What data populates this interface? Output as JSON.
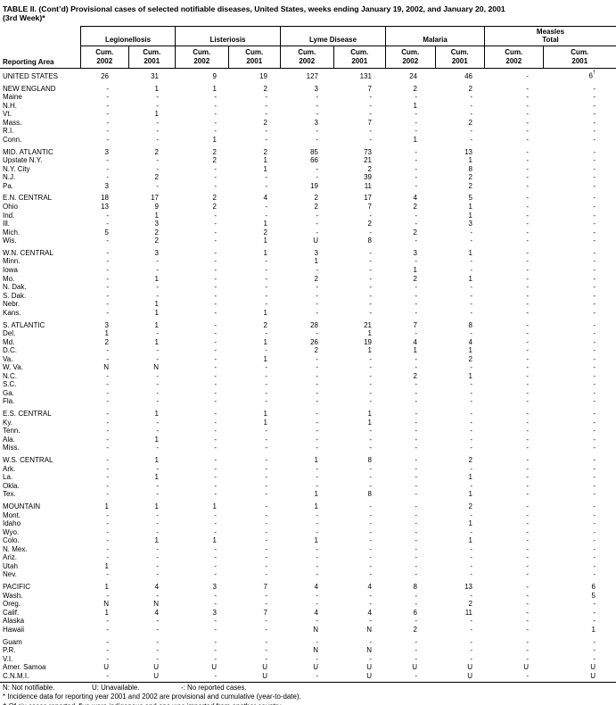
{
  "title": {
    "line1": "TABLE II. (Cont’d) Provisional cases of selected notifiable diseases, United States, weeks ending January 19, 2002, and January 20, 2001",
    "line2": "(3rd Week)*"
  },
  "header": {
    "reporting_area_label": "Reporting Area",
    "groups": [
      {
        "name": "Legionellosis",
        "subcols": [
          {
            "line1": "Cum.",
            "line2": "2002"
          },
          {
            "line1": "Cum.",
            "line2": "2001"
          }
        ]
      },
      {
        "name": "Listeriosis",
        "subcols": [
          {
            "line1": "Cum.",
            "line2": "2002"
          },
          {
            "line1": "Cum.",
            "line2": "2001"
          }
        ]
      },
      {
        "name": "Lyme Disease",
        "subcols": [
          {
            "line1": "Cum.",
            "line2": "2002"
          },
          {
            "line1": "Cum.",
            "line2": "2001"
          }
        ]
      },
      {
        "name": "Malaria",
        "subcols": [
          {
            "line1": "Cum.",
            "line2": "2002"
          },
          {
            "line1": "Cum.",
            "line2": "2001"
          }
        ]
      },
      {
        "name": "Measles\nTotal",
        "subcols": [
          {
            "line1": "Cum.",
            "line2": "2002"
          },
          {
            "line1": "Cum.",
            "line2": "2001"
          }
        ]
      }
    ]
  },
  "rows": [
    {
      "area": "UNITED STATES",
      "gap": false,
      "values": [
        "26",
        "31",
        "9",
        "19",
        "127",
        "131",
        "24",
        "46",
        "-",
        "6†"
      ]
    },
    {
      "area": "NEW ENGLAND",
      "gap": true,
      "values": [
        "-",
        "1",
        "1",
        "2",
        "3",
        "7",
        "2",
        "2",
        "-",
        "-"
      ]
    },
    {
      "area": "Maine",
      "gap": false,
      "values": [
        "-",
        "-",
        "-",
        "-",
        "-",
        "-",
        "-",
        "-",
        "-",
        "-"
      ]
    },
    {
      "area": "N.H.",
      "gap": false,
      "values": [
        "-",
        "-",
        "-",
        "-",
        "-",
        "-",
        "1",
        "-",
        "-",
        "-"
      ]
    },
    {
      "area": "Vt.",
      "gap": false,
      "values": [
        "-",
        "1",
        "-",
        "-",
        "-",
        "-",
        "-",
        "-",
        "-",
        "-"
      ]
    },
    {
      "area": "Mass.",
      "gap": false,
      "values": [
        "-",
        "-",
        "-",
        "2",
        "3",
        "7",
        "-",
        "2",
        "-",
        "-"
      ]
    },
    {
      "area": "R.I.",
      "gap": false,
      "values": [
        "-",
        "-",
        "-",
        "-",
        "-",
        "-",
        "-",
        "-",
        "-",
        "-"
      ]
    },
    {
      "area": "Conn.",
      "gap": false,
      "values": [
        "-",
        "-",
        "1",
        "-",
        "-",
        "-",
        "1",
        "-",
        "-",
        "-"
      ]
    },
    {
      "area": "MID. ATLANTIC",
      "gap": true,
      "values": [
        "3",
        "2",
        "2",
        "2",
        "85",
        "73",
        "-",
        "13",
        "-",
        "-"
      ]
    },
    {
      "area": "Upstate N.Y.",
      "gap": false,
      "values": [
        "-",
        "-",
        "2",
        "1",
        "66",
        "21",
        "-",
        "1",
        "-",
        "-"
      ]
    },
    {
      "area": "N.Y. City",
      "gap": false,
      "values": [
        "-",
        "-",
        "-",
        "1",
        "-",
        "2",
        "-",
        "8",
        "-",
        "-"
      ]
    },
    {
      "area": "N.J.",
      "gap": false,
      "values": [
        "-",
        "2",
        "-",
        "-",
        "-",
        "39",
        "-",
        "2",
        "-",
        "-"
      ]
    },
    {
      "area": "Pa.",
      "gap": false,
      "values": [
        "3",
        "-",
        "-",
        "-",
        "19",
        "11",
        "-",
        "2",
        "-",
        "-"
      ]
    },
    {
      "area": "E.N. CENTRAL",
      "gap": true,
      "values": [
        "18",
        "17",
        "2",
        "4",
        "2",
        "17",
        "4",
        "5",
        "-",
        "-"
      ]
    },
    {
      "area": "Ohio",
      "gap": false,
      "values": [
        "13",
        "9",
        "2",
        "-",
        "2",
        "7",
        "2",
        "1",
        "-",
        "-"
      ]
    },
    {
      "area": "Ind.",
      "gap": false,
      "values": [
        "-",
        "1",
        "-",
        "-",
        "-",
        "-",
        "-",
        "1",
        "-",
        "-"
      ]
    },
    {
      "area": "Ill.",
      "gap": false,
      "values": [
        "-",
        "3",
        "-",
        "1",
        "-",
        "2",
        "-",
        "3",
        "-",
        "-"
      ]
    },
    {
      "area": "Mich.",
      "gap": false,
      "values": [
        "5",
        "2",
        "-",
        "2",
        "-",
        "-",
        "2",
        "-",
        "-",
        "-"
      ]
    },
    {
      "area": "Wis.",
      "gap": false,
      "values": [
        "-",
        "2",
        "-",
        "1",
        "U",
        "8",
        "-",
        "-",
        "-",
        "-"
      ]
    },
    {
      "area": "W.N. CENTRAL",
      "gap": true,
      "values": [
        "-",
        "3",
        "-",
        "1",
        "3",
        "-",
        "3",
        "1",
        "-",
        "-"
      ]
    },
    {
      "area": "Minn.",
      "gap": false,
      "values": [
        "-",
        "-",
        "-",
        "-",
        "1",
        "-",
        "-",
        "-",
        "-",
        "-"
      ]
    },
    {
      "area": "Iowa",
      "gap": false,
      "values": [
        "-",
        "-",
        "-",
        "-",
        "-",
        "-",
        "1",
        "-",
        "-",
        "-"
      ]
    },
    {
      "area": "Mo.",
      "gap": false,
      "values": [
        "-",
        "1",
        "-",
        "-",
        "2",
        "-",
        "2",
        "1",
        "-",
        "-"
      ]
    },
    {
      "area": "N. Dak.",
      "gap": false,
      "values": [
        "-",
        "-",
        "-",
        "-",
        "-",
        "-",
        "-",
        "-",
        "-",
        "-"
      ]
    },
    {
      "area": "S. Dak.",
      "gap": false,
      "values": [
        "-",
        "-",
        "-",
        "-",
        "-",
        "-",
        "-",
        "-",
        "-",
        "-"
      ]
    },
    {
      "area": "Nebr.",
      "gap": false,
      "values": [
        "-",
        "1",
        "-",
        "-",
        "-",
        "-",
        "-",
        "-",
        "-",
        "-"
      ]
    },
    {
      "area": "Kans.",
      "gap": false,
      "values": [
        "-",
        "1",
        "-",
        "1",
        "-",
        "-",
        "-",
        "-",
        "-",
        "-"
      ]
    },
    {
      "area": "S. ATLANTIC",
      "gap": true,
      "values": [
        "3",
        "1",
        "-",
        "2",
        "28",
        "21",
        "7",
        "8",
        "-",
        "-"
      ]
    },
    {
      "area": "Del.",
      "gap": false,
      "values": [
        "1",
        "-",
        "-",
        "-",
        "-",
        "1",
        "-",
        "-",
        "-",
        "-"
      ]
    },
    {
      "area": "Md.",
      "gap": false,
      "values": [
        "2",
        "1",
        "-",
        "1",
        "26",
        "19",
        "4",
        "4",
        "-",
        "-"
      ]
    },
    {
      "area": "D.C.",
      "gap": false,
      "values": [
        "-",
        "-",
        "-",
        "-",
        "2",
        "1",
        "1",
        "1",
        "-",
        "-"
      ]
    },
    {
      "area": "Va.",
      "gap": false,
      "values": [
        "-",
        "-",
        "-",
        "1",
        "-",
        "-",
        "-",
        "2",
        "-",
        "-"
      ]
    },
    {
      "area": "W. Va.",
      "gap": false,
      "values": [
        "N",
        "N",
        "-",
        "-",
        "-",
        "-",
        "-",
        "-",
        "-",
        "-"
      ]
    },
    {
      "area": "N.C.",
      "gap": false,
      "values": [
        "-",
        "-",
        "-",
        "-",
        "-",
        "-",
        "2",
        "1",
        "-",
        "-"
      ]
    },
    {
      "area": "S.C.",
      "gap": false,
      "values": [
        "-",
        "-",
        "-",
        "-",
        "-",
        "-",
        "-",
        "-",
        "-",
        "-"
      ]
    },
    {
      "area": "Ga.",
      "gap": false,
      "values": [
        "-",
        "-",
        "-",
        "-",
        "-",
        "-",
        "-",
        "-",
        "-",
        "-"
      ]
    },
    {
      "area": "Fla.",
      "gap": false,
      "values": [
        "-",
        "-",
        "-",
        "-",
        "-",
        "-",
        "-",
        "-",
        "-",
        "-"
      ]
    },
    {
      "area": "E.S. CENTRAL",
      "gap": true,
      "values": [
        "-",
        "1",
        "-",
        "1",
        "-",
        "1",
        "-",
        "-",
        "-",
        "-"
      ]
    },
    {
      "area": "Ky.",
      "gap": false,
      "values": [
        "-",
        "-",
        "-",
        "1",
        "-",
        "1",
        "-",
        "-",
        "-",
        "-"
      ]
    },
    {
      "area": "Tenn.",
      "gap": false,
      "values": [
        "-",
        "-",
        "-",
        "-",
        "-",
        "-",
        "-",
        "-",
        "-",
        "-"
      ]
    },
    {
      "area": "Ala.",
      "gap": false,
      "values": [
        "-",
        "1",
        "-",
        "-",
        "-",
        "-",
        "-",
        "-",
        "-",
        "-"
      ]
    },
    {
      "area": "Miss.",
      "gap": false,
      "values": [
        "-",
        "-",
        "-",
        "-",
        "-",
        "-",
        "-",
        "-",
        "-",
        "-"
      ]
    },
    {
      "area": "W.S. CENTRAL",
      "gap": true,
      "values": [
        "-",
        "1",
        "-",
        "-",
        "1",
        "8",
        "-",
        "2",
        "-",
        "-"
      ]
    },
    {
      "area": "Ark.",
      "gap": false,
      "values": [
        "-",
        "-",
        "-",
        "-",
        "-",
        "-",
        "-",
        "-",
        "-",
        "-"
      ]
    },
    {
      "area": "La.",
      "gap": false,
      "values": [
        "-",
        "1",
        "-",
        "-",
        "-",
        "-",
        "-",
        "1",
        "-",
        "-"
      ]
    },
    {
      "area": "Okla.",
      "gap": false,
      "values": [
        "-",
        "-",
        "-",
        "-",
        "-",
        "-",
        "-",
        "-",
        "-",
        "-"
      ]
    },
    {
      "area": "Tex.",
      "gap": false,
      "values": [
        "-",
        "-",
        "-",
        "-",
        "1",
        "8",
        "-",
        "1",
        "-",
        "-"
      ]
    },
    {
      "area": "MOUNTAIN",
      "gap": true,
      "values": [
        "1",
        "1",
        "1",
        "-",
        "1",
        "-",
        "-",
        "2",
        "-",
        "-"
      ]
    },
    {
      "area": "Mont.",
      "gap": false,
      "values": [
        "-",
        "-",
        "-",
        "-",
        "-",
        "-",
        "-",
        "-",
        "-",
        "-"
      ]
    },
    {
      "area": "Idaho",
      "gap": false,
      "values": [
        "-",
        "-",
        "-",
        "-",
        "-",
        "-",
        "-",
        "1",
        "-",
        "-"
      ]
    },
    {
      "area": "Wyo.",
      "gap": false,
      "values": [
        "-",
        "-",
        "-",
        "-",
        "-",
        "-",
        "-",
        "-",
        "-",
        "-"
      ]
    },
    {
      "area": "Colo.",
      "gap": false,
      "values": [
        "-",
        "1",
        "1",
        "-",
        "1",
        "-",
        "-",
        "1",
        "-",
        "-"
      ]
    },
    {
      "area": "N. Mex.",
      "gap": false,
      "values": [
        "-",
        "-",
        "-",
        "-",
        "-",
        "-",
        "-",
        "-",
        "-",
        "-"
      ]
    },
    {
      "area": "Ariz.",
      "gap": false,
      "values": [
        "-",
        "-",
        "-",
        "-",
        "-",
        "-",
        "-",
        "-",
        "-",
        "-"
      ]
    },
    {
      "area": "Utah",
      "gap": false,
      "values": [
        "1",
        "-",
        "-",
        "-",
        "-",
        "-",
        "-",
        "-",
        "-",
        "-"
      ]
    },
    {
      "area": "Nev.",
      "gap": false,
      "values": [
        "-",
        "-",
        "-",
        "-",
        "-",
        "-",
        "-",
        "-",
        "-",
        "-"
      ]
    },
    {
      "area": "PACIFIC",
      "gap": true,
      "values": [
        "1",
        "4",
        "3",
        "7",
        "4",
        "4",
        "8",
        "13",
        "-",
        "6"
      ]
    },
    {
      "area": "Wash.",
      "gap": false,
      "values": [
        "-",
        "-",
        "-",
        "-",
        "-",
        "-",
        "-",
        "-",
        "-",
        "5"
      ]
    },
    {
      "area": "Oreg.",
      "gap": false,
      "values": [
        "N",
        "N",
        "-",
        "-",
        "-",
        "-",
        "-",
        "2",
        "-",
        "-"
      ]
    },
    {
      "area": "Calif.",
      "gap": false,
      "values": [
        "1",
        "4",
        "3",
        "7",
        "4",
        "4",
        "6",
        "11",
        "-",
        "-"
      ]
    },
    {
      "area": "Alaska",
      "gap": false,
      "values": [
        "-",
        "-",
        "-",
        "-",
        "-",
        "-",
        "-",
        "-",
        "-",
        "-"
      ]
    },
    {
      "area": "Hawaii",
      "gap": false,
      "values": [
        "-",
        "-",
        "-",
        "-",
        "N",
        "N",
        "2",
        "-",
        "-",
        "1"
      ]
    },
    {
      "area": "Guam",
      "gap": true,
      "values": [
        "-",
        "-",
        "-",
        "-",
        "-",
        "-",
        "-",
        "-",
        "-",
        "-"
      ]
    },
    {
      "area": "P.R.",
      "gap": false,
      "values": [
        "-",
        "-",
        "-",
        "-",
        "N",
        "N",
        "-",
        "-",
        "-",
        "-"
      ]
    },
    {
      "area": "V.I.",
      "gap": false,
      "values": [
        "-",
        "-",
        "-",
        "-",
        "-",
        "-",
        "-",
        "-",
        "-",
        "-"
      ]
    },
    {
      "area": "Amer. Samoa",
      "gap": false,
      "values": [
        "U",
        "U",
        "U",
        "U",
        "U",
        "U",
        "U",
        "U",
        "U",
        "U"
      ]
    },
    {
      "area": "C.N.M.I.",
      "gap": false,
      "values": [
        "-",
        "U",
        "-",
        "U",
        "-",
        "U",
        "-",
        "U",
        "-",
        "U"
      ]
    }
  ],
  "footnotes": {
    "legend": [
      "N: Not notifiable.",
      "U: Unavailable.",
      "-: No reported cases."
    ],
    "notes": [
      "* Incidence data for reporting year 2001 and 2002 are provisional and cumulative (year-to-date).",
      "† Of six cases reported, five were indigenous and one was imported from another country."
    ]
  }
}
